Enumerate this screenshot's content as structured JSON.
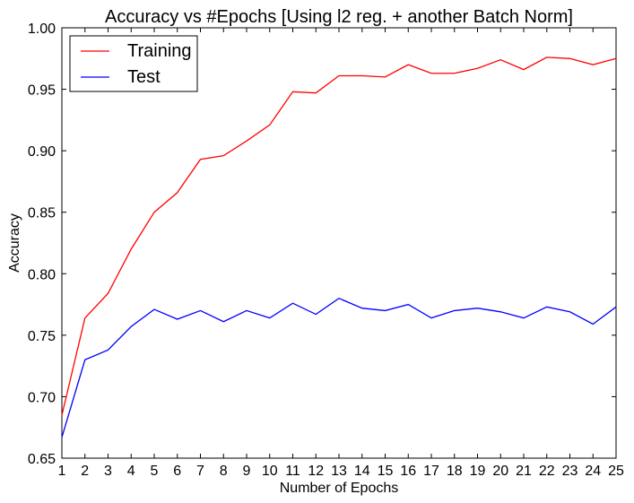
{
  "chart_data": {
    "type": "line",
    "title": "Accuracy vs #Epochs [Using l2 reg. + another Batch Norm]",
    "xlabel": "Number of Epochs",
    "ylabel": "Accuracy",
    "xlim": [
      1,
      25
    ],
    "ylim": [
      0.65,
      1.0
    ],
    "x": [
      1,
      2,
      3,
      4,
      5,
      6,
      7,
      8,
      9,
      10,
      11,
      12,
      13,
      14,
      15,
      16,
      17,
      18,
      19,
      20,
      21,
      22,
      23,
      24,
      25
    ],
    "xticks": [
      "1",
      "2",
      "3",
      "4",
      "5",
      "6",
      "7",
      "8",
      "9",
      "10",
      "11",
      "12",
      "13",
      "14",
      "15",
      "16",
      "17",
      "18",
      "19",
      "20",
      "21",
      "22",
      "23",
      "24",
      "25"
    ],
    "yticks": [
      "0.65",
      "0.70",
      "0.75",
      "0.80",
      "0.85",
      "0.90",
      "0.95",
      "1.00"
    ],
    "ytick_values": [
      0.65,
      0.7,
      0.75,
      0.8,
      0.85,
      0.9,
      0.95,
      1.0
    ],
    "grid": false,
    "legend_position": "top-left",
    "series": [
      {
        "name": "Training",
        "color": "#ff0000",
        "values": [
          0.685,
          0.764,
          0.784,
          0.82,
          0.85,
          0.866,
          0.893,
          0.896,
          0.908,
          0.921,
          0.948,
          0.947,
          0.961,
          0.961,
          0.96,
          0.97,
          0.963,
          0.963,
          0.967,
          0.974,
          0.966,
          0.976,
          0.975,
          0.97,
          0.975
        ]
      },
      {
        "name": "Test",
        "color": "#0000ff",
        "values": [
          0.667,
          0.73,
          0.738,
          0.757,
          0.771,
          0.763,
          0.77,
          0.761,
          0.77,
          0.764,
          0.776,
          0.767,
          0.78,
          0.772,
          0.77,
          0.775,
          0.764,
          0.77,
          0.772,
          0.769,
          0.764,
          0.773,
          0.769,
          0.759,
          0.773
        ]
      }
    ]
  }
}
